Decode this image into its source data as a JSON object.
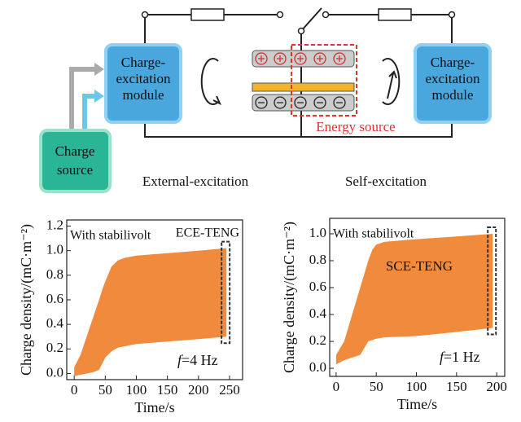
{
  "diagram": {
    "left_module": [
      "Charge-",
      "excitation",
      "module"
    ],
    "right_module": [
      "Charge-",
      "excitation",
      "module"
    ],
    "charge_source": [
      "Charge",
      "source"
    ],
    "energy_source": "Energy source",
    "left_caption": "External-excitation",
    "right_caption": "Self-excitation"
  },
  "chart_data": [
    {
      "type": "band",
      "color": "#f08a3c",
      "x_label": "Time/s",
      "y_label": "Charge density/(mC·m⁻²)",
      "annotations": [
        "With stabilivolt",
        "ECE-TENG"
      ],
      "freq_symbol": "f",
      "freq_text": "=4 Hz",
      "x": [
        0,
        10,
        20,
        30,
        40,
        45,
        50,
        60,
        70,
        80,
        100,
        150,
        200,
        245
      ],
      "upper": [
        0.05,
        0.15,
        0.3,
        0.45,
        0.6,
        0.68,
        0.75,
        0.87,
        0.92,
        0.94,
        0.96,
        0.98,
        1.0,
        1.02
      ],
      "lower": [
        -0.02,
        -0.01,
        0.0,
        0.01,
        0.03,
        0.08,
        0.13,
        0.18,
        0.21,
        0.22,
        0.24,
        0.26,
        0.28,
        0.3
      ],
      "xlim": [
        -12,
        271
      ],
      "ylim": [
        -0.05,
        1.25
      ],
      "xticks": [
        0,
        50,
        100,
        150,
        200,
        250
      ],
      "yticks": [
        {
          "value": 0,
          "label": "0.0"
        },
        {
          "value": 0.2,
          "label": "0.2"
        },
        {
          "value": 0.4,
          "label": "0.4"
        },
        {
          "value": 0.6,
          "label": "0.6"
        },
        {
          "value": 0.8,
          "label": "0.8"
        },
        {
          "value": 1,
          "label": "1.0"
        },
        {
          "value": 1.2,
          "label": "1.2"
        }
      ]
    },
    {
      "type": "band",
      "color": "#f08a3c",
      "x_label": "Time/s",
      "y_label": "Charge density/(mC·m⁻²)",
      "annotations": [
        "With stabilivolt",
        "SCE-TENG"
      ],
      "freq_symbol": "f",
      "freq_text": "=1 Hz",
      "x": [
        0,
        10,
        20,
        30,
        35,
        40,
        45,
        50,
        60,
        100,
        150,
        195
      ],
      "upper": [
        0.1,
        0.2,
        0.4,
        0.6,
        0.7,
        0.8,
        0.88,
        0.92,
        0.94,
        0.96,
        0.98,
        1.0
      ],
      "lower": [
        0.03,
        0.06,
        0.08,
        0.1,
        0.15,
        0.2,
        0.21,
        0.22,
        0.23,
        0.24,
        0.27,
        0.3
      ],
      "xlim": [
        -8,
        210
      ],
      "ylim": [
        -0.06,
        1.115
      ],
      "xticks": [
        0,
        50,
        100,
        150,
        200
      ],
      "yticks": [
        {
          "value": 0,
          "label": "0.0"
        },
        {
          "value": 0.2,
          "label": "0.2"
        },
        {
          "value": 0.4,
          "label": "0.4"
        },
        {
          "value": 0.6,
          "label": "0.6"
        },
        {
          "value": 0.8,
          "label": "0.8"
        },
        {
          "value": 1,
          "label": "1.0"
        }
      ]
    }
  ]
}
